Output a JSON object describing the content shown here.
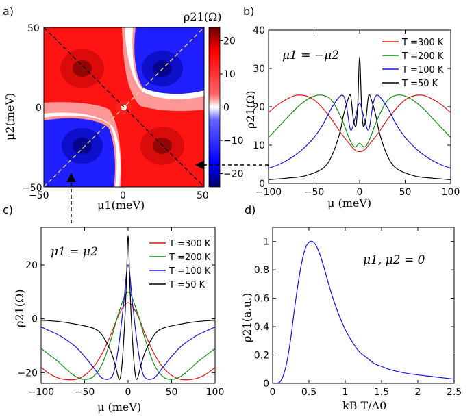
{
  "colors": {
    "red": "#dd1111",
    "green": "#118811",
    "blue": "#1111dd",
    "black": "#000000",
    "heat_pos": "#ff0000",
    "heat_neg": "#0000ff",
    "dashed_yellow": "#f0e060"
  },
  "chart_data": [
    {
      "panel": "a)",
      "type": "heatmap",
      "title": "ρ21(Ω)",
      "xlabel": "μ1(meV)",
      "ylabel": "μ2(meV)",
      "xlim": [
        -50,
        50
      ],
      "ylim": [
        -50,
        50
      ],
      "xticks": [
        "−50",
        "0",
        "50"
      ],
      "yticks": [
        "50",
        "0",
        "−50"
      ],
      "colorbar_range": [
        -24,
        24
      ],
      "colorbar_ticks": [
        "20",
        "10",
        "0",
        "−10",
        "−20"
      ],
      "colorbar_tick_values": [
        20,
        10,
        0,
        -10,
        -20
      ]
    },
    {
      "panel": "b)",
      "type": "line",
      "annotation": "μ1 = −μ2",
      "xlabel": "μ (meV)",
      "ylabel": "ρ21(Ω)",
      "xlim": [
        -100,
        100
      ],
      "ylim": [
        0,
        40
      ],
      "xticks": [
        "−100",
        "−50",
        "0",
        "50",
        "100"
      ],
      "xtick_values": [
        -100,
        -50,
        0,
        50,
        100
      ],
      "yticks": [
        "0",
        "10",
        "20",
        "30",
        "40"
      ],
      "ytick_values": [
        0,
        10,
        20,
        30,
        40
      ],
      "legend": "top-right",
      "series": [
        {
          "name": "T =300 K",
          "color": "#dd1111",
          "x": [
            -100,
            -90,
            -80,
            -70,
            -60,
            -50,
            -40,
            -30,
            -20,
            -10,
            -5,
            0,
            5,
            10,
            20,
            30,
            40,
            50,
            60,
            70,
            80,
            90,
            100
          ],
          "values": [
            18.5,
            20.5,
            22,
            23,
            22.9,
            21.8,
            19.5,
            16.5,
            13,
            10,
            8.7,
            8.3,
            8.7,
            10,
            13,
            16.5,
            19.5,
            21.8,
            22.9,
            23,
            22,
            20.5,
            18.5
          ]
        },
        {
          "name": "T =200 K",
          "color": "#118811",
          "x": [
            -100,
            -90,
            -80,
            -70,
            -60,
            -50,
            -40,
            -30,
            -20,
            -10,
            -5,
            0,
            5,
            10,
            20,
            30,
            40,
            50,
            60,
            70,
            80,
            90,
            100
          ],
          "values": [
            12,
            14.5,
            17,
            19.5,
            21.5,
            22.8,
            23,
            21.5,
            17,
            11,
            9.5,
            10.5,
            9.5,
            11,
            17,
            21.5,
            23,
            22.8,
            21.5,
            19.5,
            17,
            14.5,
            12
          ]
        },
        {
          "name": "T =100 K",
          "color": "#1111dd",
          "x": [
            -100,
            -90,
            -80,
            -70,
            -60,
            -50,
            -40,
            -30,
            -20,
            -15,
            -10,
            -5,
            0,
            5,
            10,
            15,
            20,
            30,
            40,
            50,
            60,
            70,
            80,
            90,
            100
          ],
          "values": [
            4,
            4.8,
            6,
            7.5,
            9.5,
            12,
            15.5,
            20,
            23,
            21,
            14,
            17,
            21,
            17,
            14,
            21,
            23,
            20,
            15.5,
            12,
            9.5,
            7.5,
            6,
            4.8,
            4
          ]
        },
        {
          "name": "T =50 K",
          "color": "#000000",
          "x": [
            -100,
            -80,
            -60,
            -40,
            -30,
            -22,
            -18,
            -14,
            -10,
            -7,
            -4,
            -2,
            0,
            2,
            4,
            7,
            10,
            14,
            18,
            22,
            30,
            40,
            60,
            80,
            100
          ],
          "values": [
            1,
            1.4,
            2,
            4,
            7.5,
            13,
            17.5,
            21,
            23,
            17,
            15,
            21,
            33,
            21,
            15,
            17,
            23,
            21,
            17.5,
            13,
            7.5,
            4,
            2,
            1.4,
            1
          ]
        }
      ]
    },
    {
      "panel": "c)",
      "type": "line",
      "annotation": "μ1 = μ2",
      "xlabel": "μ (meV)",
      "ylabel": "ρ21(Ω)",
      "xlim": [
        -100,
        100
      ],
      "ylim": [
        -24,
        34
      ],
      "xticks": [
        "−100",
        "−50",
        "0",
        "50",
        "100"
      ],
      "xtick_values": [
        -100,
        -50,
        0,
        50,
        100
      ],
      "yticks": [
        "−20",
        "0",
        "20"
      ],
      "ytick_values": [
        -20,
        0,
        20
      ],
      "legend": "top-right",
      "series": [
        {
          "name": "T =300 K",
          "color": "#dd1111",
          "x": [
            -100,
            -90,
            -80,
            -70,
            -60,
            -50,
            -40,
            -30,
            -20,
            -10,
            0,
            10,
            20,
            30,
            40,
            50,
            60,
            70,
            80,
            90,
            100
          ],
          "values": [
            -18,
            -20.5,
            -22,
            -22.6,
            -22.5,
            -21,
            -18,
            -13,
            -6,
            2,
            6,
            2,
            -6,
            -13,
            -18,
            -21,
            -22.5,
            -22.6,
            -22,
            -20.5,
            -18
          ]
        },
        {
          "name": "T =200 K",
          "color": "#118811",
          "x": [
            -100,
            -90,
            -80,
            -70,
            -60,
            -50,
            -40,
            -30,
            -20,
            -10,
            0,
            10,
            20,
            30,
            40,
            50,
            60,
            70,
            80,
            90,
            100
          ],
          "values": [
            -11,
            -13.5,
            -16,
            -19,
            -21.5,
            -22.5,
            -21.5,
            -17,
            -8,
            3,
            10,
            3,
            -8,
            -17,
            -21.5,
            -22.5,
            -21.5,
            -19,
            -16,
            -13.5,
            -11
          ]
        },
        {
          "name": "T =100 K",
          "color": "#1111dd",
          "x": [
            -100,
            -90,
            -80,
            -70,
            -60,
            -50,
            -40,
            -30,
            -20,
            -15,
            -10,
            -5,
            0,
            5,
            10,
            15,
            20,
            30,
            40,
            50,
            60,
            70,
            80,
            90,
            100
          ],
          "values": [
            -3,
            -4.5,
            -6,
            -8,
            -10.5,
            -14,
            -18,
            -22,
            -22,
            -18,
            -8,
            6,
            20,
            6,
            -8,
            -18,
            -22,
            -22,
            -18,
            -14,
            -10.5,
            -8,
            -6,
            -4.5,
            -3
          ]
        },
        {
          "name": "T =50 K",
          "color": "#000000",
          "x": [
            -100,
            -80,
            -60,
            -40,
            -30,
            -20,
            -15,
            -10,
            -7,
            -4,
            -2,
            0,
            2,
            4,
            7,
            10,
            15,
            20,
            30,
            40,
            60,
            80,
            100
          ],
          "values": [
            -0.5,
            -1,
            -2,
            -3.5,
            -6,
            -12,
            -17,
            -22.5,
            -17,
            -2,
            13,
            31,
            13,
            -2,
            -17,
            -22.5,
            -17,
            -12,
            -6,
            -3.5,
            -2,
            -1,
            -0.5
          ]
        }
      ]
    },
    {
      "panel": "d)",
      "type": "line",
      "annotation": "μ1, μ2 = 0",
      "xlabel": "kB T/Δ0",
      "ylabel": "ρ21(a.u.)",
      "xlim": [
        0,
        2.5
      ],
      "ylim": [
        0,
        1.1
      ],
      "xticks": [
        "0",
        "0.5",
        "1",
        "1.5",
        "2",
        "2.5"
      ],
      "xtick_values": [
        0,
        0.5,
        1,
        1.5,
        2,
        2.5
      ],
      "yticks": [
        "0",
        "0.2",
        "0.4",
        "0.6",
        "0.8",
        "1"
      ],
      "ytick_values": [
        0,
        0.2,
        0.4,
        0.6,
        0.8,
        1
      ],
      "series": [
        {
          "color": "#1111dd",
          "x": [
            0,
            0.05,
            0.1,
            0.15,
            0.2,
            0.25,
            0.3,
            0.35,
            0.4,
            0.45,
            0.5,
            0.55,
            0.6,
            0.65,
            0.7,
            0.8,
            0.9,
            1.0,
            1.1,
            1.2,
            1.3,
            1.4,
            1.5,
            1.6,
            1.8,
            2.0,
            2.2,
            2.5
          ],
          "values": [
            0,
            0,
            0.01,
            0.06,
            0.16,
            0.32,
            0.52,
            0.7,
            0.85,
            0.95,
            0.995,
            1.0,
            0.97,
            0.91,
            0.83,
            0.65,
            0.5,
            0.38,
            0.29,
            0.22,
            0.18,
            0.14,
            0.12,
            0.1,
            0.075,
            0.06,
            0.048,
            0.03
          ]
        }
      ]
    }
  ],
  "annotations": {
    "arrow_b_from": "panel-a",
    "arrow_c_from": "panel-a"
  }
}
